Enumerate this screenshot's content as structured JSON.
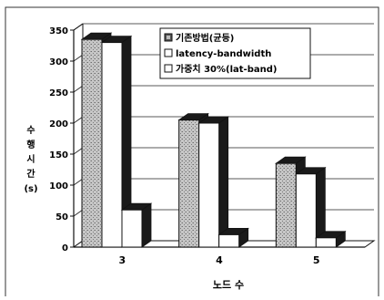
{
  "chart_data": {
    "type": "bar",
    "title": "",
    "xlabel": "노드 수",
    "ylabel_lines": [
      "수",
      "행",
      "시",
      "간",
      "(s)"
    ],
    "categories": [
      "3",
      "4",
      "5"
    ],
    "ylim": [
      0,
      350
    ],
    "yticks": [
      "0",
      "50",
      "100",
      "150",
      "200",
      "250",
      "300",
      "350"
    ],
    "grid": true,
    "legend_position": "top-right",
    "series": [
      {
        "name": "기존방법(균등)",
        "values": [
          335,
          205,
          135
        ]
      },
      {
        "name": "latency-bandwidth",
        "values": [
          330,
          200,
          118
        ]
      },
      {
        "name": "가중치 30%(lat-band)",
        "values": [
          60,
          20,
          15
        ]
      }
    ]
  },
  "colors": {
    "series_fills": [
      "#b8b8b8",
      "#ffffff",
      "#ffffff"
    ],
    "side_fill": "#1a1a1a",
    "axis": "#111111",
    "grid": "#222222"
  }
}
